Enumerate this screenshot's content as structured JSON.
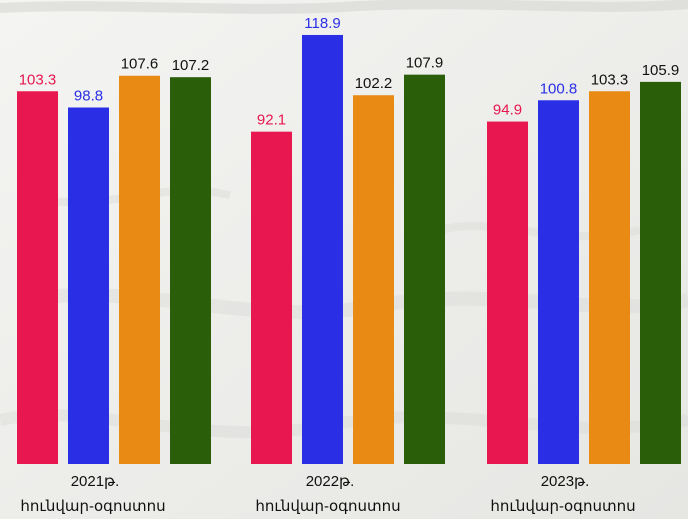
{
  "chart_data": {
    "type": "bar",
    "categories": [
      {
        "year": "2021թ.",
        "period": "հունվար-օգոստոս"
      },
      {
        "year": "2022թ.",
        "period": "հունվար-օգոստոս"
      },
      {
        "year": "2023թ.",
        "period": "հունվար-օգոստոս"
      }
    ],
    "series": [
      {
        "color": "#e8174f",
        "values": [
          103.3,
          92.1,
          94.9
        ]
      },
      {
        "color": "#2a2fe6",
        "values": [
          98.8,
          118.9,
          100.8
        ]
      },
      {
        "color": "#e88a14",
        "values": [
          107.6,
          102.2,
          103.3
        ]
      },
      {
        "color": "#2a5e08",
        "values": [
          107.2,
          107.9,
          105.9
        ]
      }
    ],
    "value_label_colors": [
      "#e8174f",
      "#2a2fe6",
      "#111111",
      "#111111"
    ],
    "ylim": [
      0,
      120
    ],
    "grid": false,
    "legend": "none"
  }
}
